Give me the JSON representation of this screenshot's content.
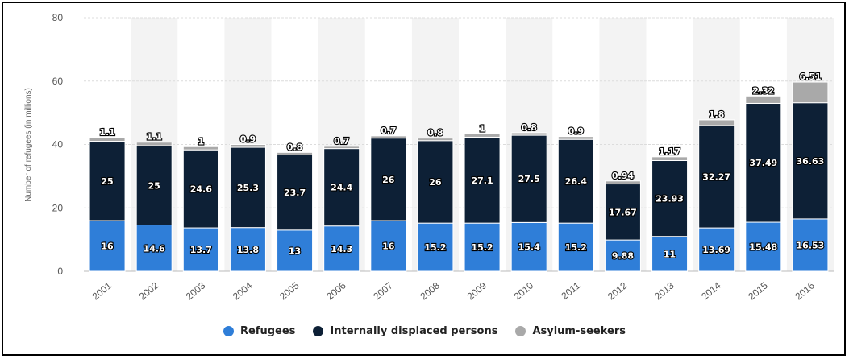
{
  "chart_data": {
    "type": "bar",
    "stacked": true,
    "categories": [
      "2001",
      "2002",
      "2003",
      "2004",
      "2005",
      "2006",
      "2007",
      "2008",
      "2009",
      "2010",
      "2011",
      "2012",
      "2013",
      "2014",
      "2015",
      "2016"
    ],
    "series": [
      {
        "name": "Refugees",
        "color": "#2f7ed8",
        "values": [
          16,
          14.6,
          13.7,
          13.8,
          13,
          14.3,
          16,
          15.2,
          15.2,
          15.4,
          15.2,
          9.88,
          11,
          13.69,
          15.48,
          16.53
        ],
        "labels": [
          "16",
          "14.6",
          "13.7",
          "13.8",
          "13",
          "14.3",
          "16",
          "15.2",
          "15.2",
          "15.4",
          "15.2",
          "9.88",
          "11",
          "13.69",
          "15.48",
          "16.53"
        ]
      },
      {
        "name": "Internally displaced persons",
        "color": "#0d2036",
        "values": [
          25,
          25,
          24.6,
          25.3,
          23.7,
          24.4,
          26,
          26,
          27.1,
          27.5,
          26.4,
          17.67,
          23.93,
          32.27,
          37.49,
          36.63
        ],
        "labels": [
          "25",
          "25",
          "24.6",
          "25.3",
          "23.7",
          "24.4",
          "26",
          "26",
          "27.1",
          "27.5",
          "26.4",
          "17.67",
          "23.93",
          "32.27",
          "37.49",
          "36.63"
        ]
      },
      {
        "name": "Asylum-seekers",
        "color": "#a9a9a9",
        "values": [
          1.1,
          1.1,
          1,
          0.9,
          0.8,
          0.7,
          0.7,
          0.8,
          1,
          0.8,
          0.9,
          0.94,
          1.17,
          1.8,
          2.32,
          6.51
        ],
        "labels": [
          "1.1",
          "1.1",
          "1",
          "0.9",
          "0.8",
          "0.7",
          "0.7",
          "0.8",
          "1",
          "0.8",
          "0.9",
          "0.94",
          "1.17",
          "1.8",
          "2.32",
          "6.51"
        ]
      }
    ],
    "ylabel": "Number of refugees (in millions)",
    "ylim": [
      0,
      80
    ],
    "yticks": [
      "0",
      "20",
      "40",
      "60",
      "80"
    ],
    "grid": true,
    "legend_position": "bottom"
  }
}
